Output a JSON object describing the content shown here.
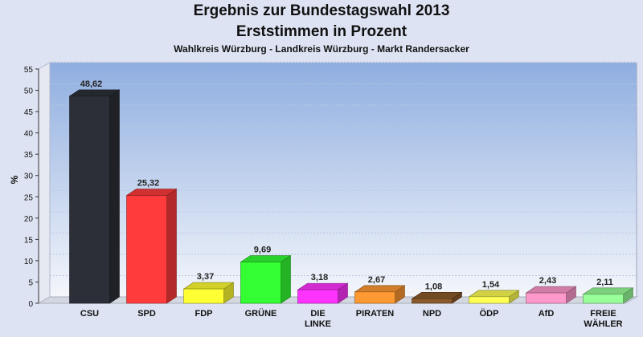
{
  "chart_data": {
    "type": "bar",
    "title": "Ergebnis zur Bundestagswahl 2013",
    "subtitle": "Erststimmen in Prozent",
    "caption": "Wahlkreis Würzburg - Landkreis Würzburg - Markt Randersacker",
    "ylabel": "%",
    "xlabel": "",
    "ylim": [
      0,
      55
    ],
    "yticks": [
      "0",
      "5",
      "10",
      "15",
      "20",
      "25",
      "30",
      "35",
      "40",
      "45",
      "50",
      "55"
    ],
    "grid": true,
    "categories": [
      "CSU",
      "SPD",
      "FDP",
      "GRÜNE",
      "DIE LINKE",
      "PIRATEN",
      "NPD",
      "ÖDP",
      "AfD",
      "FREIE WÄHLER"
    ],
    "category_lines": [
      [
        "CSU"
      ],
      [
        "SPD"
      ],
      [
        "FDP"
      ],
      [
        "GRÜNE"
      ],
      [
        "DIE",
        "LINKE"
      ],
      [
        "PIRATEN"
      ],
      [
        "NPD"
      ],
      [
        "ÖDP"
      ],
      [
        "AfD"
      ],
      [
        "FREIE",
        "WÄHLER"
      ]
    ],
    "values": [
      48.62,
      25.32,
      3.37,
      9.69,
      3.18,
      2.67,
      1.08,
      1.54,
      2.43,
      2.11
    ],
    "value_labels": [
      "48,62",
      "25,32",
      "3,37",
      "9,69",
      "3,18",
      "2,67",
      "1,08",
      "1,54",
      "2,43",
      "2,11"
    ],
    "colors": [
      "#2c2f38",
      "#ff3b3b",
      "#ffff33",
      "#33ff33",
      "#ff33ff",
      "#ff9933",
      "#8b5a2b",
      "#ffff55",
      "#ff99cc",
      "#99ff99"
    ]
  }
}
